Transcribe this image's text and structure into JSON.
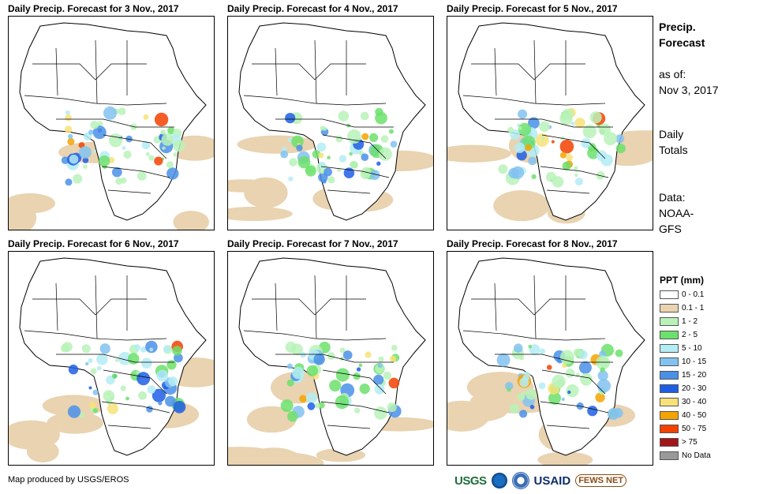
{
  "panels": [
    {
      "title": "Daily Precip. Forecast for 3 Nov., 2017"
    },
    {
      "title": "Daily Precip. Forecast for 4 Nov., 2017"
    },
    {
      "title": "Daily Precip. Forecast for 5 Nov., 2017"
    },
    {
      "title": "Daily Precip. Forecast for 6 Nov., 2017"
    },
    {
      "title": "Daily Precip. Forecast for 7 Nov., 2017"
    },
    {
      "title": "Daily Precip. Forecast for 8 Nov., 2017"
    }
  ],
  "sidebar": {
    "heading_line1": "Precip.",
    "heading_line2": "Forecast",
    "asof_label": "as of:",
    "asof_date": "Nov 3, 2017",
    "totals_line1": "Daily",
    "totals_line2": "Totals",
    "data_line1": "Data:",
    "data_line2": "NOAA-",
    "data_line3": "GFS"
  },
  "legend": {
    "title": "PPT (mm)",
    "items": [
      {
        "label": "0 - 0.1",
        "color": "#ffffff"
      },
      {
        "label": "0.1 - 1",
        "color": "#e9d3b0"
      },
      {
        "label": "1 - 2",
        "color": "#b8f2b8"
      },
      {
        "label": "2 - 5",
        "color": "#6ce06c"
      },
      {
        "label": "5 - 10",
        "color": "#b4ecf4"
      },
      {
        "label": "10 - 15",
        "color": "#82c2f0"
      },
      {
        "label": "15 - 20",
        "color": "#4a90e8"
      },
      {
        "label": "20 - 30",
        "color": "#1e5ee6"
      },
      {
        "label": "30 - 40",
        "color": "#f7e27a"
      },
      {
        "label": "40 - 50",
        "color": "#f5a300"
      },
      {
        "label": "50 - 75",
        "color": "#f24200"
      },
      {
        "label": "> 75",
        "color": "#a3171b"
      },
      {
        "label": "No Data",
        "color": "#999999"
      }
    ]
  },
  "footer": {
    "credit": "Map produced by USGS/EROS",
    "logo_usgs": "USGS",
    "logo_usaid": "USAID",
    "logo_fews": "FEWS NET"
  }
}
